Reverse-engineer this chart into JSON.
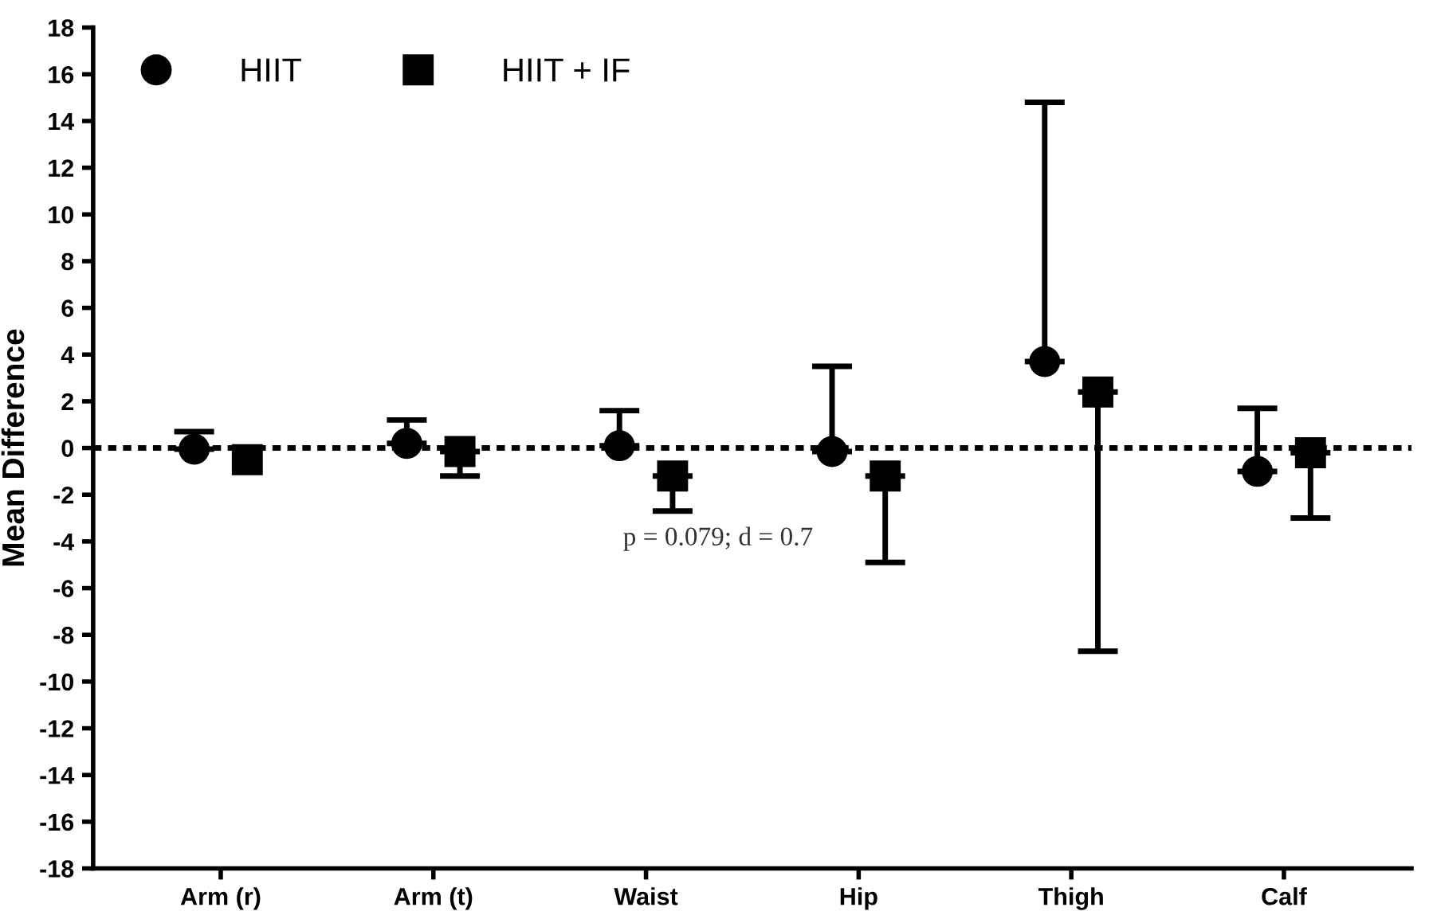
{
  "chart_data": {
    "type": "scatter",
    "ylabel": "Mean Difference",
    "categories": [
      "Arm (r)",
      "Arm (t)",
      "Waist",
      "Hip",
      "Thigh",
      "Calf"
    ],
    "series": [
      {
        "name": "HIIT",
        "color": "#000000",
        "marker": "circle",
        "values": [
          -0.05,
          0.2,
          0.1,
          -0.15,
          3.7,
          -1.0
        ],
        "errors": [
          [
            -0.05,
            0.7
          ],
          [
            0.2,
            1.2
          ],
          [
            0.1,
            1.6
          ],
          [
            -0.15,
            3.5
          ],
          [
            3.7,
            14.8
          ],
          [
            -1.0,
            1.7
          ]
        ]
      },
      {
        "name": "HIIT + IF",
        "color": "#000000",
        "marker": "square",
        "values": [
          -0.5,
          -0.15,
          -1.2,
          -1.2,
          2.4,
          -0.2
        ],
        "errors": [
          null,
          [
            -1.2,
            -0.15
          ],
          [
            -2.7,
            -1.2
          ],
          [
            -4.9,
            -1.2
          ],
          [
            -8.7,
            2.4
          ],
          [
            -3.0,
            -0.2
          ]
        ]
      }
    ],
    "ylim": [
      -18,
      18
    ],
    "yticks": [
      -18,
      -16,
      -14,
      -12,
      -10,
      -8,
      -6,
      -4,
      -2,
      0,
      2,
      4,
      6,
      8,
      10,
      12,
      14,
      16,
      18
    ],
    "ref_lines": [
      {
        "axis": "y",
        "value": 0,
        "line_style": "dotted",
        "color": "#000000"
      }
    ],
    "annotations": [
      "p = 0.079; d = 0.7"
    ],
    "legend": "top left",
    "grid": false
  }
}
